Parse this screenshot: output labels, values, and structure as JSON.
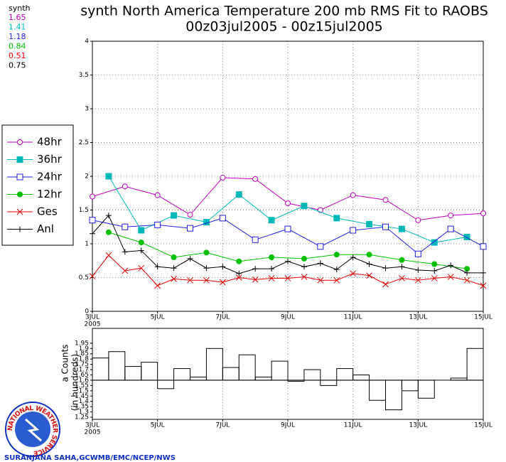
{
  "chart_data": [
    {
      "type": "line",
      "title": "synth North America Temperature 200 mb RMS Fit to RAOBS",
      "subtitle": "00z03jul2005 - 00z15jul2005",
      "stats_title": "synth",
      "stats": [
        {
          "value": 1.65,
          "color": "#c000c0"
        },
        {
          "value": 1.41,
          "color": "#00b8b8"
        },
        {
          "value": 1.18,
          "color": "#2020e0"
        },
        {
          "value": 0.84,
          "color": "#00c000"
        },
        {
          "value": 0.51,
          "color": "#e00000"
        },
        {
          "value": 0.75,
          "color": "#000000"
        }
      ],
      "xlim": [
        0,
        12
      ],
      "ylim": [
        0,
        4
      ],
      "xticks": [
        {
          "value": 0,
          "label": "3JUL"
        },
        {
          "value": 2,
          "label": "5JUL"
        },
        {
          "value": 4,
          "label": "7JUL"
        },
        {
          "value": 6,
          "label": "9JUL"
        },
        {
          "value": 8,
          "label": "11JUL"
        },
        {
          "value": 10,
          "label": "13JUL"
        },
        {
          "value": 12,
          "label": "15JUL"
        }
      ],
      "x_year": "2005",
      "yticks": [
        0,
        0.5,
        1,
        1.5,
        2,
        2.5,
        3,
        3.5,
        4
      ],
      "grid": true,
      "series": [
        {
          "name": "48hr",
          "color": "#c000c0",
          "marker": "open-circle",
          "x": [
            0,
            1,
            2,
            3,
            4,
            5,
            6,
            7,
            8,
            9,
            10,
            11,
            12
          ],
          "values": [
            1.7,
            1.85,
            1.72,
            1.43,
            1.98,
            1.96,
            1.6,
            1.5,
            1.72,
            1.65,
            1.35,
            1.42,
            1.45
          ]
        },
        {
          "name": "36hr",
          "color": "#00b8b8",
          "marker": "filled-square",
          "x": [
            0.5,
            1.5,
            2.5,
            3.5,
            4.5,
            5.5,
            6.5,
            7.5,
            8.5,
            9.5,
            10.5,
            11.5
          ],
          "values": [
            2.0,
            1.2,
            1.42,
            1.32,
            1.73,
            1.35,
            1.56,
            1.38,
            1.29,
            1.22,
            1.02,
            1.1
          ]
        },
        {
          "name": "24hr",
          "color": "#2020e0",
          "marker": "open-square",
          "x": [
            0,
            1,
            2,
            3,
            4,
            5,
            6,
            7,
            8,
            9,
            10,
            11,
            12
          ],
          "values": [
            1.35,
            1.25,
            1.28,
            1.23,
            1.38,
            1.06,
            1.22,
            0.96,
            1.2,
            1.25,
            0.85,
            1.22,
            0.96
          ]
        },
        {
          "name": "12hr",
          "color": "#00c000",
          "marker": "filled-circle",
          "x": [
            0.5,
            1.5,
            2.5,
            3.5,
            4.5,
            5.5,
            6.5,
            7.5,
            8.5,
            9.5,
            10.5,
            11.5
          ],
          "values": [
            1.17,
            1.02,
            0.8,
            0.87,
            0.74,
            0.8,
            0.78,
            0.84,
            0.84,
            0.76,
            0.7,
            0.63
          ]
        },
        {
          "name": "Ges",
          "color": "#e00000",
          "marker": "x",
          "x": [
            0,
            0.5,
            1,
            1.5,
            2,
            2.5,
            3,
            3.5,
            4,
            4.5,
            5,
            5.5,
            6,
            6.5,
            7,
            7.5,
            8,
            8.5,
            9,
            9.5,
            10,
            10.5,
            11,
            11.5,
            12
          ],
          "values": [
            0.52,
            0.83,
            0.6,
            0.64,
            0.38,
            0.48,
            0.46,
            0.46,
            0.43,
            0.5,
            0.47,
            0.49,
            0.49,
            0.51,
            0.46,
            0.46,
            0.56,
            0.53,
            0.4,
            0.49,
            0.46,
            0.49,
            0.51,
            0.46,
            0.38
          ]
        },
        {
          "name": "Anl",
          "color": "#000000",
          "marker": "plus",
          "x": [
            0,
            0.5,
            1,
            1.5,
            2,
            2.5,
            3,
            3.5,
            4,
            4.5,
            5,
            5.5,
            6,
            6.5,
            7,
            7.5,
            8,
            8.5,
            9,
            9.5,
            10,
            10.5,
            11,
            11.5,
            12
          ],
          "values": [
            1.15,
            1.42,
            0.88,
            0.9,
            0.66,
            0.64,
            0.78,
            0.64,
            0.66,
            0.56,
            0.63,
            0.63,
            0.74,
            0.66,
            0.71,
            0.62,
            0.8,
            0.7,
            0.64,
            0.66,
            0.61,
            0.6,
            0.68,
            0.57,
            0.57
          ]
        }
      ]
    },
    {
      "type": "histogram",
      "ylabel": "a Counts",
      "ylabel2": "(in hundreds)",
      "xlim": [
        0,
        12
      ],
      "ylim": [
        1.23,
        2.09
      ],
      "base": 1.6,
      "xticks": [
        {
          "value": 0,
          "label": "3JUL"
        },
        {
          "value": 2,
          "label": "5JUL"
        },
        {
          "value": 4,
          "label": "7JUL"
        },
        {
          "value": 6,
          "label": "9JUL"
        },
        {
          "value": 8,
          "label": "11JUL"
        },
        {
          "value": 10,
          "label": "13JUL"
        },
        {
          "value": 12,
          "label": "15JUL"
        }
      ],
      "x_year": "2005",
      "yticks": [
        1.25,
        1.3,
        1.35,
        1.4,
        1.45,
        1.5,
        1.55,
        1.6,
        1.65,
        1.7,
        1.75,
        1.8,
        1.85,
        1.9,
        1.95
      ],
      "grid": true,
      "bins": [
        0,
        0.5,
        1,
        1.5,
        2,
        2.5,
        3,
        3.5,
        4,
        4.5,
        5,
        5.5,
        6,
        6.5,
        7,
        7.5,
        8,
        8.5,
        9,
        9.5,
        10,
        10.5,
        11,
        11.5,
        12
      ],
      "values": [
        1.81,
        1.87,
        1.73,
        1.77,
        1.52,
        1.71,
        1.63,
        1.9,
        1.72,
        1.84,
        1.63,
        1.78,
        1.59,
        1.7,
        1.55,
        1.71,
        1.65,
        1.41,
        1.32,
        1.5,
        1.43,
        1.6,
        1.62,
        1.9
      ]
    }
  ],
  "footer": {
    "credit": "SURANJANA SAHA,GCWMB/EMC/NCEP/NWS",
    "logo_text": "NATIONAL WEATHER SERVICE"
  }
}
